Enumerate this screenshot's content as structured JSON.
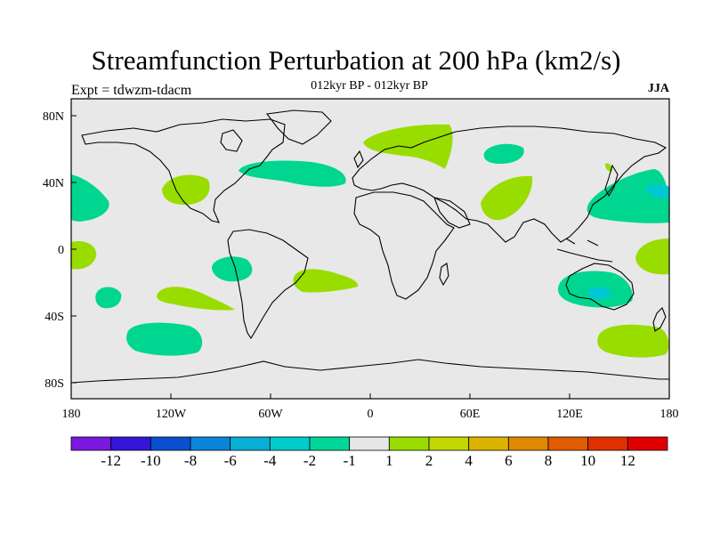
{
  "title": "Streamfunction Perturbation at 200 hPa (km2/s)",
  "subtitle": "012kyr BP - 012kyr BP",
  "left_label": "Expt = tdwzm-tdacm",
  "right_label": "JJA",
  "lon_ticks": [
    "180",
    "120W",
    "60W",
    "0",
    "60E",
    "120E",
    "180"
  ],
  "lat_ticks": [
    "80N",
    "40N",
    "0",
    "40S",
    "80S"
  ],
  "colors": {
    "background_fill": "#e8e8e8",
    "neg_fill": "#00d68f",
    "neg_core_fill": "#00c8d2",
    "pos_fill": "#99dd00"
  },
  "colorbar": {
    "labels": [
      "-12",
      "-10",
      "-8",
      "-6",
      "-4",
      "-2",
      "-1",
      "1",
      "2",
      "4",
      "6",
      "8",
      "10",
      "12"
    ],
    "colors": [
      "#7a18e0",
      "#3316d8",
      "#0a4fd0",
      "#0a86d8",
      "#07aed6",
      "#00cccc",
      "#00d69a",
      "#e6e6e6",
      "#99dd00",
      "#c2d800",
      "#dcb400",
      "#e08800",
      "#e05c00",
      "#e03000",
      "#e00000"
    ]
  }
}
